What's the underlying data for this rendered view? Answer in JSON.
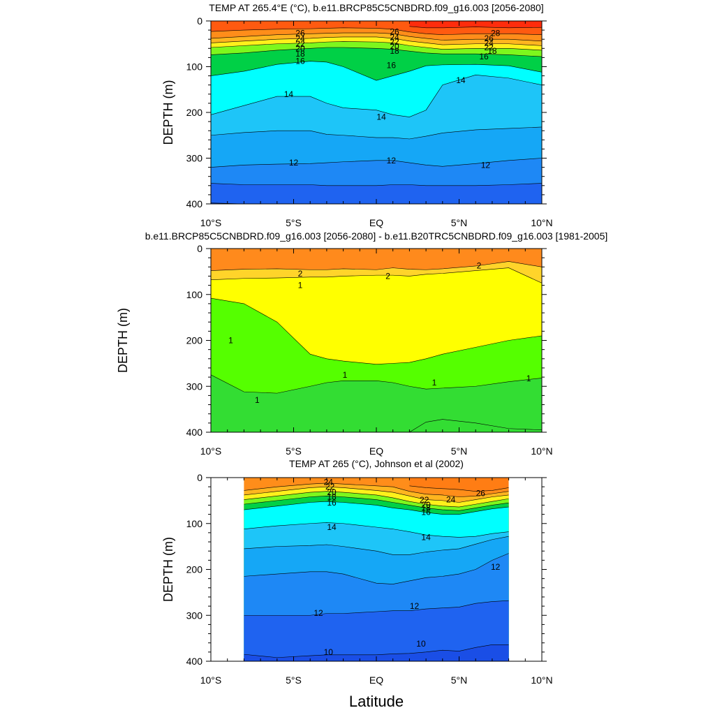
{
  "figure": {
    "xlabel": "Latitude"
  },
  "chart_data": [
    {
      "type": "heatmap",
      "title": "TEMP AT 265.4°E (°C), b.e11.BRCP85C5CNBDRD.f09_g16.003 [2056-2080]",
      "xlabel": "",
      "ylabel": "DEPTH (m)",
      "xlim": [
        -10,
        10
      ],
      "ylim": [
        400,
        0
      ],
      "x_ticks": [
        -10,
        -5,
        0,
        5,
        10
      ],
      "x_tick_labels": [
        "10°S",
        "5°S",
        "EQ",
        "5°N",
        "10°N"
      ],
      "y_ticks": [
        0,
        100,
        200,
        300,
        400
      ],
      "y_tick_labels": [
        "0",
        "100",
        "200",
        "300",
        "400"
      ],
      "x_extent": [
        -10,
        10
      ],
      "contour_levels": [
        10,
        11,
        12,
        13,
        14,
        15,
        16,
        17,
        18,
        19,
        20,
        21,
        22,
        23,
        24,
        25,
        26,
        27,
        28
      ],
      "isotherm_depths": {
        "x": [
          -10,
          -8,
          -6,
          -4,
          -3,
          -2,
          0,
          1,
          2,
          3,
          4,
          6,
          8,
          10
        ],
        "levels": {
          "28": [
            null,
            null,
            null,
            null,
            null,
            null,
            null,
            null,
            12,
            15,
            15,
            13,
            15,
            14
          ],
          "26": [
            23,
            20,
            18,
            17,
            16,
            15,
            16,
            18,
            24,
            28,
            30,
            28,
            28,
            30
          ],
          "24": [
            38,
            34,
            30,
            28,
            27,
            26,
            26,
            28,
            34,
            38,
            42,
            40,
            40,
            44
          ],
          "22": [
            48,
            44,
            40,
            38,
            36,
            35,
            35,
            38,
            44,
            48,
            52,
            50,
            50,
            54
          ],
          "20": [
            58,
            54,
            50,
            48,
            46,
            45,
            46,
            48,
            54,
            58,
            62,
            60,
            60,
            64
          ],
          "18": [
            74,
            70,
            64,
            60,
            58,
            58,
            60,
            62,
            66,
            70,
            72,
            72,
            74,
            78
          ],
          "16": [
            120,
            110,
            95,
            88,
            90,
            100,
            130,
            120,
            110,
            98,
            96,
            95,
            98,
            112
          ],
          "14": [
            205,
            185,
            165,
            165,
            180,
            190,
            195,
            205,
            210,
            195,
            140,
            118,
            125,
            140
          ],
          "13": [
            250,
            244,
            240,
            240,
            248,
            250,
            255,
            255,
            258,
            252,
            245,
            238,
            235,
            232
          ],
          "12": [
            320,
            315,
            313,
            312,
            310,
            308,
            305,
            305,
            310,
            315,
            318,
            312,
            305,
            300
          ],
          "11": [
            355,
            358,
            358,
            358,
            360,
            360,
            360,
            358,
            358,
            360,
            360,
            360,
            358,
            355
          ],
          "10": [
            398,
            400,
            400,
            400,
            400,
            400,
            400,
            400,
            400,
            400,
            400,
            400,
            400,
            400
          ]
        }
      },
      "contour_labels": [
        {
          "text": "26",
          "x": -4.6,
          "y": 27
        },
        {
          "text": "24",
          "x": -4.6,
          "y": 39
        },
        {
          "text": "22",
          "x": -4.6,
          "y": 50
        },
        {
          "text": "20",
          "x": -4.6,
          "y": 60
        },
        {
          "text": "18",
          "x": -4.6,
          "y": 72
        },
        {
          "text": "16",
          "x": -4.6,
          "y": 88
        },
        {
          "text": "26",
          "x": 1.1,
          "y": 24
        },
        {
          "text": "24",
          "x": 1.1,
          "y": 36
        },
        {
          "text": "22",
          "x": 1.1,
          "y": 46
        },
        {
          "text": "20",
          "x": 1.1,
          "y": 56
        },
        {
          "text": "18",
          "x": 1.1,
          "y": 66
        },
        {
          "text": "16",
          "x": 0.9,
          "y": 97
        },
        {
          "text": "28",
          "x": 7.2,
          "y": 27
        },
        {
          "text": "26",
          "x": 6.8,
          "y": 38
        },
        {
          "text": "24",
          "x": 6.8,
          "y": 48
        },
        {
          "text": "22",
          "x": 6.8,
          "y": 58
        },
        {
          "text": "18",
          "x": 7.0,
          "y": 66
        },
        {
          "text": "16",
          "x": 6.5,
          "y": 78
        },
        {
          "text": "14",
          "x": -5.3,
          "y": 160
        },
        {
          "text": "14",
          "x": 0.3,
          "y": 210
        },
        {
          "text": "14",
          "x": 5.1,
          "y": 130
        },
        {
          "text": "12",
          "x": -5.0,
          "y": 310
        },
        {
          "text": "12",
          "x": 0.9,
          "y": 305
        },
        {
          "text": "12",
          "x": 6.6,
          "y": 315
        }
      ]
    },
    {
      "type": "heatmap",
      "title": "b.e11.BRCP85C5CNBDRD.f09_g16.003 [2056-2080] - b.e11.B20TRC5CNBDRD.f09_g16.003 [1981-2005]",
      "xlabel": "",
      "ylabel": "DEPTH (m)",
      "xlim": [
        -10,
        10
      ],
      "ylim": [
        400,
        0
      ],
      "x_ticks": [
        -10,
        -5,
        0,
        5,
        10
      ],
      "x_tick_labels": [
        "10°S",
        "5°S",
        "EQ",
        "5°N",
        "10°N"
      ],
      "y_ticks": [
        0,
        100,
        200,
        300,
        400
      ],
      "y_tick_labels": [
        "0",
        "100",
        "200",
        "300",
        "400"
      ],
      "x_extent": [
        -10,
        10
      ],
      "contour_levels": [
        0.5,
        1,
        1.5,
        2,
        2.5,
        3
      ],
      "isotherm_depths": {
        "x": [
          -10,
          -8,
          -6,
          -4,
          -3,
          -2,
          0,
          1,
          2,
          3,
          4,
          6,
          8,
          10
        ],
        "levels": {
          "2.5": [
            48,
            45,
            44,
            46,
            46,
            44,
            46,
            42,
            45,
            46,
            44,
            38,
            28,
            40
          ],
          "2": [
            68,
            65,
            64,
            62,
            62,
            60,
            58,
            58,
            60,
            56,
            54,
            48,
            42,
            75
          ],
          "1.5": [
            108,
            120,
            160,
            230,
            240,
            245,
            252,
            250,
            248,
            240,
            230,
            215,
            200,
            190
          ],
          "1": [
            275,
            312,
            315,
            300,
            292,
            288,
            288,
            292,
            300,
            306,
            304,
            300,
            290,
            282
          ],
          "0.5": [
            null,
            null,
            null,
            null,
            null,
            null,
            null,
            null,
            400,
            378,
            372,
            380,
            392,
            395
          ]
        }
      },
      "contour_labels": [
        {
          "text": "2",
          "x": -4.6,
          "y": 55
        },
        {
          "text": "1",
          "x": -4.6,
          "y": 80
        },
        {
          "text": "2",
          "x": 0.7,
          "y": 60
        },
        {
          "text": "2",
          "x": 6.2,
          "y": 37
        },
        {
          "text": "1",
          "x": -8.8,
          "y": 200
        },
        {
          "text": "1",
          "x": -1.9,
          "y": 275
        },
        {
          "text": "1",
          "x": 3.5,
          "y": 292
        },
        {
          "text": "1",
          "x": 9.2,
          "y": 283
        },
        {
          "text": "1",
          "x": -7.2,
          "y": 330
        }
      ]
    },
    {
      "type": "heatmap",
      "title": "TEMP AT 265 (°C), Johnson et al (2002)",
      "xlabel": "",
      "ylabel": "DEPTH (m)",
      "xlim": [
        -10,
        10
      ],
      "ylim": [
        400,
        0
      ],
      "x_ticks": [
        -10,
        -5,
        0,
        5,
        10
      ],
      "x_tick_labels": [
        "10°S",
        "5°S",
        "EQ",
        "5°N",
        "10°N"
      ],
      "y_ticks": [
        0,
        100,
        200,
        300,
        400
      ],
      "y_tick_labels": [
        "0",
        "100",
        "200",
        "300",
        "400"
      ],
      "x_extent": [
        -8,
        8
      ],
      "contour_levels": [
        10,
        11,
        12,
        13,
        14,
        15,
        16,
        17,
        18,
        19,
        20,
        21,
        22,
        23,
        24,
        25,
        26
      ],
      "isotherm_depths": {
        "x": [
          -8,
          -6,
          -4,
          -3,
          -2,
          0,
          1,
          2,
          3,
          4,
          5,
          6,
          7,
          8
        ],
        "levels": {
          "26": [
            null,
            null,
            null,
            null,
            null,
            null,
            null,
            18,
            22,
            24,
            26,
            30,
            28,
            22
          ],
          "24": [
            28,
            20,
            14,
            12,
            14,
            18,
            20,
            30,
            36,
            38,
            42,
            40,
            35,
            30
          ],
          "22": [
            38,
            30,
            22,
            20,
            22,
            28,
            32,
            40,
            48,
            50,
            54,
            48,
            42,
            38
          ],
          "20": [
            48,
            40,
            32,
            30,
            32,
            38,
            44,
            52,
            58,
            62,
            64,
            58,
            52,
            46
          ],
          "18": [
            58,
            50,
            42,
            40,
            42,
            48,
            54,
            60,
            66,
            70,
            72,
            66,
            60,
            55
          ],
          "16": [
            70,
            62,
            54,
            52,
            54,
            60,
            66,
            70,
            76,
            80,
            80,
            74,
            68,
            64
          ],
          "14": [
            112,
            105,
            100,
            98,
            100,
            108,
            112,
            118,
            125,
            128,
            130,
            128,
            122,
            118
          ],
          "13": [
            155,
            150,
            148,
            146,
            150,
            160,
            168,
            168,
            162,
            158,
            155,
            145,
            135,
            128
          ],
          "12": [
            215,
            210,
            205,
            205,
            210,
            230,
            232,
            225,
            218,
            215,
            210,
            200,
            180,
            165
          ],
          "11": [
            300,
            300,
            300,
            296,
            296,
            292,
            290,
            290,
            286,
            284,
            282,
            274,
            270,
            268
          ],
          "10": [
            385,
            392,
            388,
            386,
            386,
            386,
            384,
            383,
            380,
            376,
            378,
            370,
            364,
            364
          ]
        }
      },
      "contour_labels": [
        {
          "text": "24",
          "x": -2.9,
          "y": 10
        },
        {
          "text": "22",
          "x": -2.8,
          "y": 20
        },
        {
          "text": "20",
          "x": -2.7,
          "y": 32
        },
        {
          "text": "18",
          "x": -2.7,
          "y": 42
        },
        {
          "text": "16",
          "x": -2.7,
          "y": 55
        },
        {
          "text": "26",
          "x": 6.3,
          "y": 34
        },
        {
          "text": "24",
          "x": 4.5,
          "y": 48
        },
        {
          "text": "22",
          "x": 2.9,
          "y": 49
        },
        {
          "text": "20",
          "x": 3.0,
          "y": 59
        },
        {
          "text": "18",
          "x": 3.0,
          "y": 66
        },
        {
          "text": "16",
          "x": 3.0,
          "y": 75
        },
        {
          "text": "14",
          "x": -2.7,
          "y": 108
        },
        {
          "text": "14",
          "x": 3.0,
          "y": 130
        },
        {
          "text": "12",
          "x": 7.2,
          "y": 195
        },
        {
          "text": "12",
          "x": -3.5,
          "y": 295
        },
        {
          "text": "12",
          "x": 2.3,
          "y": 280
        },
        {
          "text": "10",
          "x": -2.9,
          "y": 380
        },
        {
          "text": "10",
          "x": 2.7,
          "y": 362
        }
      ]
    }
  ]
}
